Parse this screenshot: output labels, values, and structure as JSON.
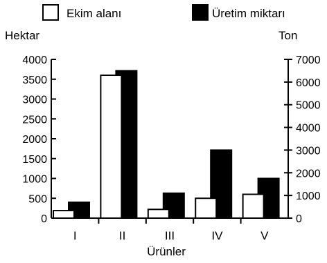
{
  "chart_data": {
    "type": "bar",
    "title": "",
    "xlabel": "Ürünler",
    "ylabel_left": "Hektar",
    "ylabel_right": "Ton",
    "categories": [
      "I",
      "II",
      "III",
      "IV",
      "V"
    ],
    "series": [
      {
        "name": "Ekim alanı",
        "axis": "left",
        "color": "#ffffff",
        "values": [
          190,
          3600,
          220,
          500,
          600
        ]
      },
      {
        "name": "Üretim miktarı",
        "axis": "right",
        "color": "#000000",
        "values": [
          700,
          6500,
          1100,
          3000,
          1750
        ]
      }
    ],
    "ylim_left": [
      0,
      4000
    ],
    "yticks_left": [
      "0",
      "500",
      "1000",
      "1500",
      "2000",
      "2500",
      "3000",
      "3500",
      "4000"
    ],
    "ylim_right": [
      0,
      7000
    ],
    "yticks_right": [
      "0",
      "1000",
      "2000",
      "3000",
      "4000",
      "5000",
      "6000",
      "7000"
    ],
    "grid": false,
    "legend_position": "top"
  }
}
